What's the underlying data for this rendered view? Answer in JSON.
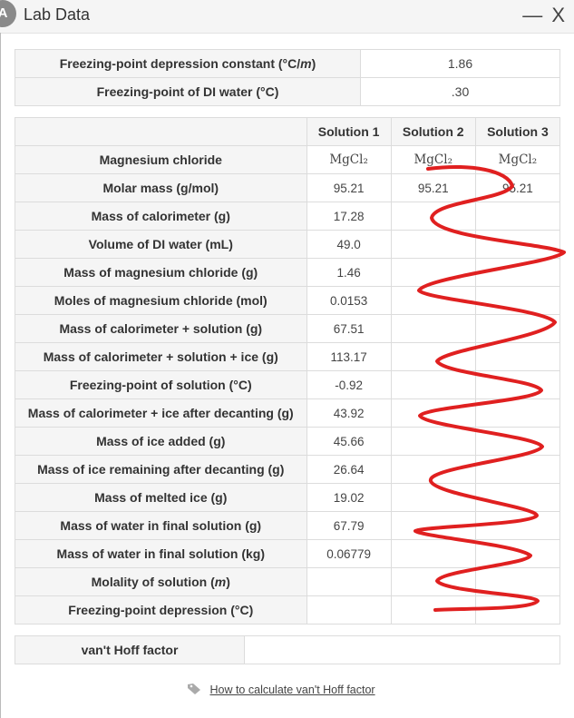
{
  "window": {
    "title": "Lab Data",
    "logo_letter": "A",
    "minimize": "—",
    "close": "X"
  },
  "constants": [
    {
      "label": "Freezing-point depression constant (°C/m)",
      "value": "1.86"
    },
    {
      "label": "Freezing-point of DI water (°C)",
      "value": ".30"
    }
  ],
  "table": {
    "headers": [
      "",
      "Solution 1",
      "Solution 2",
      "Solution 3"
    ],
    "rows": [
      {
        "label": "Magnesium chloride",
        "values": [
          "MgCl₂",
          "MgCl₂",
          "MgCl₂"
        ]
      },
      {
        "label": "Molar mass (g/mol)",
        "values": [
          "95.21",
          "95.21",
          "95.21"
        ]
      },
      {
        "label": "Mass of calorimeter (g)",
        "values": [
          "17.28",
          "",
          ""
        ]
      },
      {
        "label": "Volume of DI water (mL)",
        "values": [
          "49.0",
          "",
          ""
        ]
      },
      {
        "label": "Mass of magnesium chloride (g)",
        "values": [
          "1.46",
          "",
          ""
        ]
      },
      {
        "label": "Moles of magnesium chloride (mol)",
        "values": [
          "0.0153",
          "",
          ""
        ]
      },
      {
        "label": "Mass of calorimeter + solution (g)",
        "values": [
          "67.51",
          "",
          ""
        ]
      },
      {
        "label": "Mass of calorimeter + solution + ice (g)",
        "values": [
          "113.17",
          "",
          ""
        ]
      },
      {
        "label": "Freezing-point of solution (°C)",
        "values": [
          "-0.92",
          "",
          ""
        ]
      },
      {
        "label": "Mass of calorimeter + ice after decanting (g)",
        "values": [
          "43.92",
          "",
          ""
        ]
      },
      {
        "label": "Mass of ice added (g)",
        "values": [
          "45.66",
          "",
          ""
        ]
      },
      {
        "label": "Mass of ice remaining after decanting (g)",
        "values": [
          "26.64",
          "",
          ""
        ]
      },
      {
        "label": "Mass of melted ice (g)",
        "values": [
          "19.02",
          "",
          ""
        ]
      },
      {
        "label": "Mass of water in final solution (g)",
        "values": [
          "67.79",
          "",
          ""
        ]
      },
      {
        "label": "Mass of water in final solution (kg)",
        "values": [
          "0.06779",
          "",
          ""
        ]
      },
      {
        "label": "Molality of solution (m)",
        "values": [
          "",
          "",
          ""
        ]
      },
      {
        "label": "Freezing-point depression (°C)",
        "values": [
          "",
          "",
          ""
        ]
      }
    ]
  },
  "vant_hoff": {
    "label": "van't Hoff factor",
    "value": ""
  },
  "help_link": {
    "text": "How to calculate van't Hoff factor",
    "icon": "tag-icon"
  },
  "colors": {
    "scribble": "#e02020",
    "header_bg": "#f5f5f5",
    "border": "#dcdcdc"
  }
}
